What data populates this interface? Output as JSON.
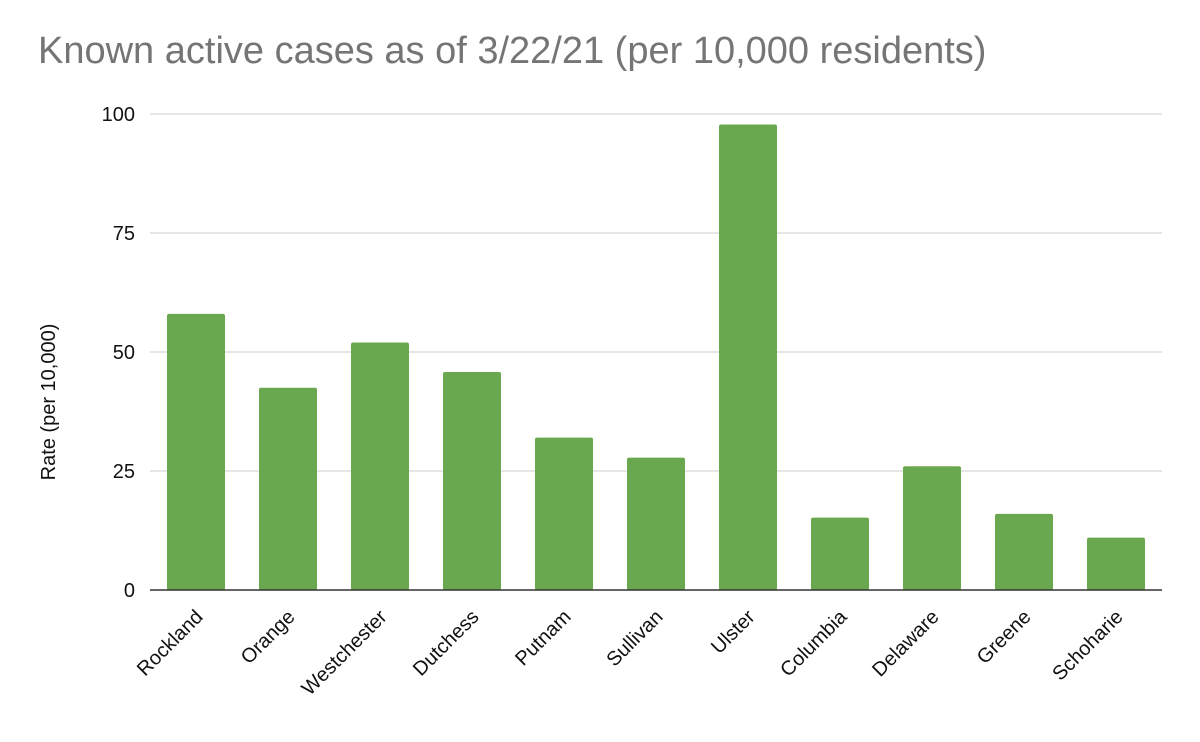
{
  "chart_data": {
    "type": "bar",
    "title": "Known active cases as of 3/22/21 (per 10,000 residents)",
    "ylabel": "Rate (per 10,000)",
    "xlabel": "",
    "categories": [
      "Rockland",
      "Orange",
      "Westchester",
      "Dutchess",
      "Putnam",
      "Sullivan",
      "Ulster",
      "Columbia",
      "Delaware",
      "Greene",
      "Schoharie"
    ],
    "values": [
      58,
      42.5,
      52,
      45.8,
      32,
      27.8,
      97.8,
      15.2,
      26,
      16,
      11
    ],
    "ylim": [
      0,
      100
    ],
    "yticks": [
      "0",
      "25",
      "50",
      "75",
      "100"
    ],
    "bar_color": "#6aa84f",
    "grid": true,
    "legend": "none"
  }
}
